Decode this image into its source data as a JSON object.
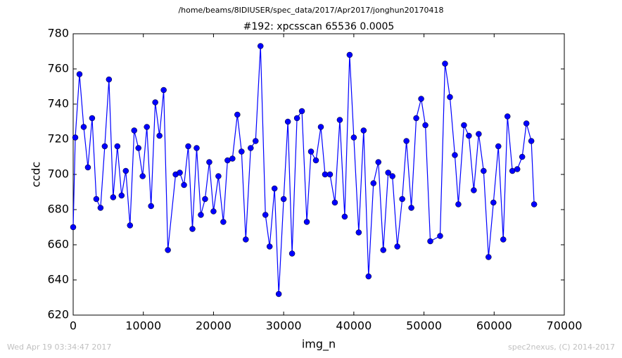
{
  "chart_data": {
    "type": "line",
    "suptitle": "/home/beams/8IDIUSER/spec_data/2017/Apr2017/jonghun20170418",
    "title": "#192: xpcsscan 65536 0.0005",
    "xlabel": "img_n",
    "ylabel": "ccdc",
    "footer_left": "Wed Apr 19 03:34:47 2017",
    "footer_right": "spec2nexus, (C) 2014-2017",
    "xlim": [
      0,
      70000
    ],
    "xticks": [
      0,
      10000,
      20000,
      30000,
      40000,
      50000,
      60000,
      70000
    ],
    "ylim": [
      620,
      780
    ],
    "yticks": [
      620,
      640,
      660,
      680,
      700,
      720,
      740,
      760,
      780
    ],
    "x": [
      0,
      300,
      900,
      1500,
      2100,
      2700,
      3300,
      3900,
      4500,
      5100,
      5700,
      6300,
      6900,
      7500,
      8100,
      8700,
      9300,
      9900,
      10500,
      11100,
      11700,
      12300,
      12900,
      13500,
      14600,
      15200,
      15800,
      16400,
      17000,
      17600,
      18200,
      18800,
      19400,
      20000,
      20700,
      21400,
      22000,
      22700,
      23400,
      24000,
      24600,
      25300,
      26000,
      26700,
      27400,
      28000,
      28700,
      29300,
      30000,
      30600,
      31200,
      31900,
      32600,
      33300,
      33900,
      34600,
      35300,
      35900,
      36600,
      37300,
      38000,
      38700,
      39400,
      40000,
      40700,
      41400,
      42100,
      42800,
      43500,
      44200,
      44900,
      45500,
      46200,
      46900,
      47500,
      48200,
      48900,
      49600,
      50200,
      50900,
      52300,
      53000,
      53700,
      54400,
      54900,
      55700,
      56400,
      57100,
      57800,
      58500,
      59200,
      59900,
      60600,
      61300,
      61900,
      62600,
      63300,
      64000,
      64600,
      65300,
      65700
    ],
    "series": [
      {
        "name": "ccdc",
        "color": "#0000ff",
        "values": [
          670,
          721,
          757,
          727,
          704,
          732,
          686,
          681,
          716,
          754,
          687,
          716,
          688,
          702,
          671,
          725,
          715,
          699,
          727,
          682,
          741,
          722,
          748,
          657,
          700,
          701,
          694,
          716,
          669,
          715,
          677,
          686,
          707,
          679,
          699,
          673,
          708,
          709,
          734,
          713,
          663,
          715,
          719,
          773,
          677,
          659,
          692,
          632,
          686,
          730,
          655,
          732,
          736,
          673,
          713,
          708,
          727,
          700,
          700,
          684,
          731,
          676,
          768,
          721,
          667,
          725,
          642,
          695,
          707,
          657,
          701,
          699,
          659,
          686,
          719,
          681,
          732,
          743,
          728,
          662,
          665,
          763,
          744,
          711,
          683,
          728,
          722,
          691,
          723,
          702,
          653,
          684,
          716,
          663,
          733,
          702,
          703,
          710,
          729,
          719,
          683
        ]
      }
    ]
  }
}
